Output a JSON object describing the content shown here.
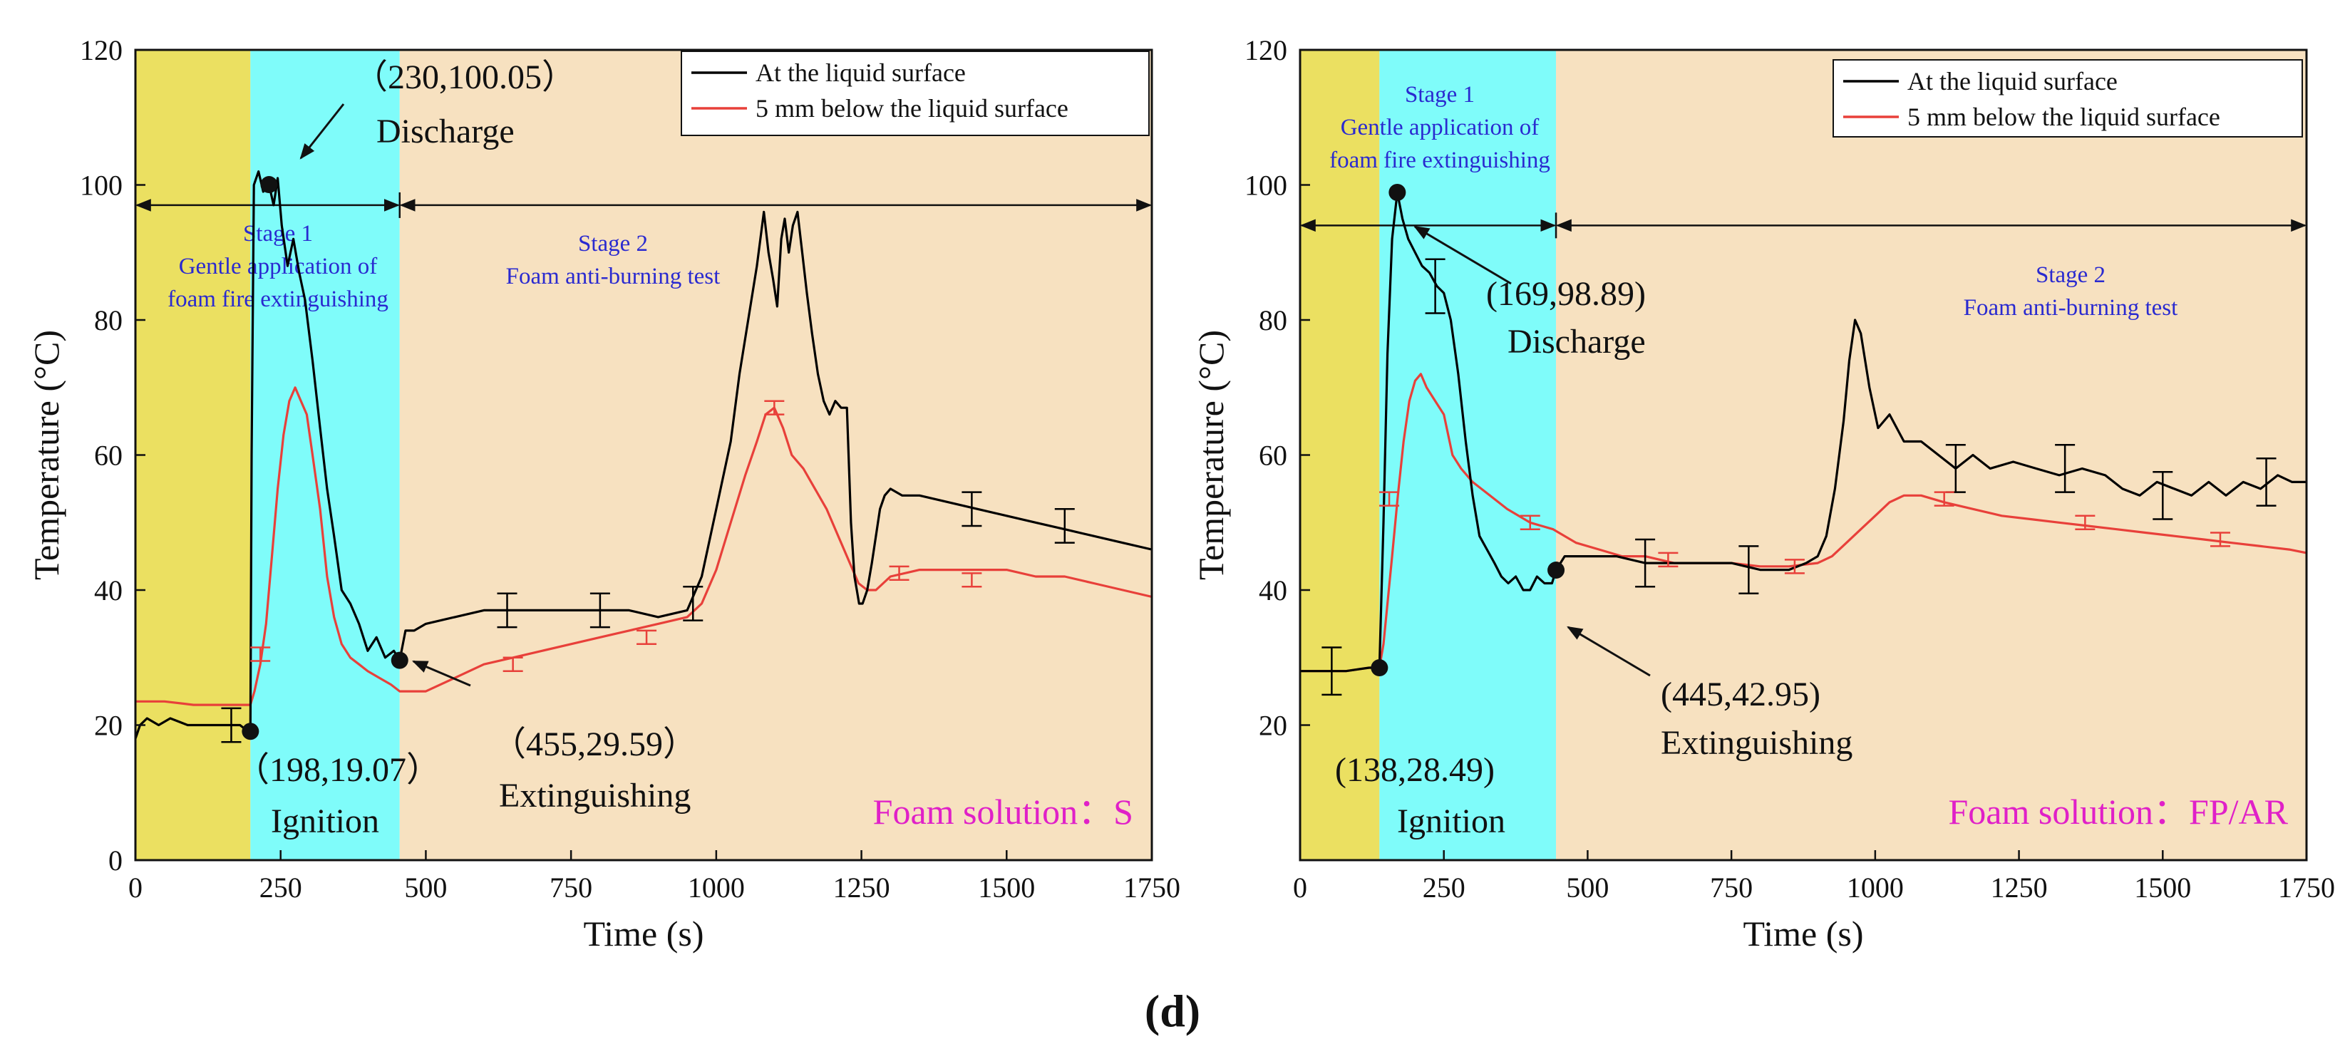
{
  "caption": "(d)",
  "colors": {
    "surface": "#000000",
    "below": "#e8403a",
    "preburn": "#ebe061",
    "stage1": "#7ffcfa",
    "stage2": "#f7e1c0",
    "stage_text": "#2a2ad0",
    "foam_text": "#e020c8"
  },
  "chart_data": [
    {
      "type": "line",
      "title": "",
      "xlabel": "Time (s)",
      "ylabel": "Temperature (°C)",
      "xlim": [
        0,
        1750
      ],
      "ylim": [
        0,
        120
      ],
      "xticks": [
        0,
        250,
        500,
        750,
        1000,
        1250,
        1500,
        1750
      ],
      "yticks": [
        0,
        20,
        40,
        60,
        80,
        100,
        120
      ],
      "xtick_labels": [
        "0",
        "250",
        "500",
        "750",
        "1000",
        "1250",
        "1500",
        "1750"
      ],
      "ytick_labels": [
        "0",
        "20",
        "40",
        "60",
        "80",
        "100",
        "120"
      ],
      "legend": [
        "At the liquid surface",
        "5 mm below the liquid surface"
      ],
      "legend_position": "top-right",
      "regions": [
        {
          "name": "preburn",
          "x": [
            0,
            198
          ]
        },
        {
          "name": "stage1",
          "x": [
            198,
            455
          ]
        },
        {
          "name": "stage2",
          "x": [
            455,
            1750
          ]
        }
      ],
      "stage_arrow_y": 97,
      "stage1_lines": [
        "Stage 1",
        "Gentle application of",
        "foam fire extinguishing"
      ],
      "stage2_lines": [
        "Stage 2",
        "Foam anti-burning test"
      ],
      "foam_label": "Foam solution：S",
      "points": [
        {
          "x": 230,
          "y": 100.05,
          "coord": "（230,100.05）",
          "label": "Discharge"
        },
        {
          "x": 198,
          "y": 19.07,
          "coord": "（198,19.07）",
          "label": "Ignition"
        },
        {
          "x": 455,
          "y": 29.59,
          "coord": "（455,29.59）",
          "label": "Extinguishing"
        }
      ],
      "series": [
        {
          "name": "At the liquid surface",
          "x": [
            0,
            8,
            20,
            40,
            60,
            90,
            120,
            150,
            180,
            195,
            198,
            200,
            204,
            212,
            220,
            230,
            238,
            245,
            252,
            262,
            272,
            282,
            292,
            305,
            318,
            330,
            342,
            355,
            370,
            385,
            400,
            415,
            430,
            445,
            455,
            465,
            480,
            500,
            550,
            600,
            650,
            700,
            750,
            800,
            850,
            900,
            950,
            975,
            1000,
            1025,
            1040,
            1055,
            1070,
            1082,
            1090,
            1098,
            1105,
            1112,
            1118,
            1125,
            1132,
            1140,
            1148,
            1156,
            1165,
            1175,
            1185,
            1195,
            1205,
            1215,
            1225,
            1232,
            1238,
            1242,
            1246,
            1252,
            1260,
            1268,
            1275,
            1282,
            1290,
            1300,
            1320,
            1350,
            1400,
            1450,
            1500,
            1550,
            1600,
            1650,
            1700,
            1750
          ],
          "y": [
            18,
            20,
            21,
            20,
            21,
            20,
            20,
            20,
            20,
            19,
            19.07,
            60,
            100,
            102,
            99,
            100.05,
            97,
            101,
            94,
            88,
            92,
            87,
            83,
            74,
            64,
            55,
            48,
            40,
            38,
            35,
            31,
            33,
            30,
            31,
            29.59,
            34,
            34,
            35,
            36,
            37,
            37,
            37,
            37,
            37,
            37,
            36,
            37,
            42,
            52,
            62,
            72,
            80,
            88,
            96,
            90,
            86,
            82,
            92,
            95,
            90,
            94,
            96,
            90,
            84,
            78,
            72,
            68,
            66,
            68,
            67,
            67,
            50,
            42,
            40,
            38,
            38,
            40,
            44,
            48,
            52,
            54,
            55,
            54,
            54,
            53,
            52,
            51,
            50,
            49,
            48,
            47,
            46
          ]
        },
        {
          "name": "5 mm below the liquid surface",
          "x": [
            0,
            50,
            100,
            150,
            195,
            198,
            205,
            215,
            225,
            235,
            245,
            255,
            265,
            275,
            285,
            295,
            305,
            318,
            330,
            342,
            355,
            370,
            385,
            400,
            420,
            440,
            455,
            475,
            500,
            550,
            600,
            650,
            700,
            750,
            800,
            850,
            900,
            950,
            975,
            1000,
            1025,
            1050,
            1070,
            1085,
            1100,
            1115,
            1130,
            1150,
            1170,
            1190,
            1210,
            1230,
            1245,
            1260,
            1275,
            1300,
            1350,
            1400,
            1450,
            1500,
            1550,
            1600,
            1650,
            1700,
            1750
          ],
          "y": [
            23.5,
            23.5,
            23,
            23,
            23,
            23,
            25,
            29,
            35,
            45,
            55,
            63,
            68,
            70,
            68,
            66,
            60,
            52,
            42,
            36,
            32,
            30,
            29,
            28,
            27,
            26,
            25,
            25,
            25,
            27,
            29,
            30,
            31,
            32,
            33,
            34,
            35,
            36,
            38,
            43,
            50,
            57,
            62,
            66,
            67,
            64,
            60,
            58,
            55,
            52,
            48,
            44,
            41,
            40,
            40,
            42,
            43,
            43,
            43,
            43,
            42,
            42,
            41,
            40,
            39
          ]
        }
      ],
      "error_bars": [
        {
          "series": 0,
          "x": [
            165,
            640,
            800,
            960,
            1440,
            1600
          ],
          "y": [
            20,
            37,
            37,
            38,
            52,
            49.5
          ],
          "err": [
            2.5,
            2.5,
            2.5,
            2.5,
            2.5,
            2.5
          ]
        },
        {
          "series": 1,
          "x": [
            215,
            650,
            880,
            1100,
            1315,
            1440
          ],
          "y": [
            30.5,
            29,
            33,
            67,
            42.5,
            41.5
          ],
          "err": [
            1,
            1,
            1,
            1,
            1,
            1
          ]
        }
      ]
    },
    {
      "type": "line",
      "title": "",
      "xlabel": "Time (s)",
      "ylabel": "Temperature (°C)",
      "xlim": [
        0,
        1750
      ],
      "ylim": [
        0,
        120
      ],
      "xticks": [
        0,
        250,
        500,
        750,
        1000,
        1250,
        1500,
        1750
      ],
      "yticks": [
        20,
        40,
        60,
        80,
        100,
        120
      ],
      "xtick_labels": [
        "0",
        "250",
        "500",
        "750",
        "1000",
        "1250",
        "1500",
        "1750"
      ],
      "ytick_labels": [
        "20",
        "40",
        "60",
        "80",
        "100",
        "120"
      ],
      "legend": [
        "At the liquid surface",
        "5 mm below the liquid surface"
      ],
      "legend_position": "top-right",
      "regions": [
        {
          "name": "preburn",
          "x": [
            0,
            138
          ]
        },
        {
          "name": "stage1",
          "x": [
            138,
            445
          ]
        },
        {
          "name": "stage2",
          "x": [
            445,
            1750
          ]
        }
      ],
      "stage_arrow_y": 94,
      "stage1_lines": [
        "Stage 1",
        "Gentle application of",
        "foam fire extinguishing"
      ],
      "stage2_lines": [
        "Stage 2",
        "Foam anti-burning test"
      ],
      "foam_label": "Foam solution：FP/AR",
      "points": [
        {
          "x": 169,
          "y": 98.89,
          "coord": "(169,98.89)",
          "label": "Discharge"
        },
        {
          "x": 138,
          "y": 28.49,
          "coord": "(138,28.49)",
          "label": "Ignition"
        },
        {
          "x": 445,
          "y": 42.95,
          "coord": "(445,42.95)",
          "label": "Extinguishing"
        }
      ],
      "series": [
        {
          "name": "At the liquid surface",
          "x": [
            0,
            40,
            80,
            120,
            135,
            138,
            145,
            152,
            160,
            169,
            178,
            188,
            200,
            212,
            225,
            238,
            250,
            262,
            275,
            288,
            300,
            312,
            325,
            338,
            350,
            362,
            375,
            388,
            400,
            412,
            425,
            438,
            445,
            460,
            480,
            500,
            550,
            600,
            650,
            700,
            750,
            800,
            850,
            880,
            900,
            915,
            930,
            945,
            955,
            965,
            975,
            990,
            1005,
            1025,
            1050,
            1080,
            1110,
            1140,
            1170,
            1200,
            1240,
            1280,
            1320,
            1360,
            1400,
            1430,
            1460,
            1490,
            1520,
            1550,
            1580,
            1610,
            1640,
            1670,
            1700,
            1725,
            1750
          ],
          "y": [
            28,
            28,
            28,
            28.5,
            28.5,
            28.49,
            50,
            75,
            92,
            98.89,
            95,
            92,
            90,
            88,
            87,
            85,
            84,
            80,
            72,
            62,
            54,
            48,
            46,
            44,
            42,
            41,
            42,
            40,
            40,
            42,
            41,
            41,
            42.95,
            45,
            45,
            45,
            45,
            44,
            44,
            44,
            44,
            43,
            43,
            44,
            45,
            48,
            55,
            65,
            74,
            80,
            78,
            70,
            64,
            66,
            62,
            62,
            60,
            58,
            60,
            58,
            59,
            58,
            57,
            58,
            57,
            55,
            54,
            56,
            55,
            54,
            56,
            54,
            56,
            55,
            57,
            56,
            56
          ]
        },
        {
          "name": "5 mm below the liquid surface",
          "x": [
            0,
            40,
            80,
            120,
            138,
            145,
            152,
            160,
            170,
            180,
            190,
            200,
            210,
            220,
            235,
            250,
            265,
            280,
            300,
            330,
            360,
            400,
            440,
            480,
            520,
            560,
            600,
            650,
            700,
            750,
            800,
            850,
            900,
            925,
            950,
            975,
            1000,
            1025,
            1050,
            1080,
            1120,
            1170,
            1220,
            1270,
            1320,
            1370,
            1420,
            1470,
            1520,
            1570,
            1620,
            1670,
            1720,
            1750
          ],
          "y": [
            28,
            28,
            28,
            28.5,
            28.5,
            32,
            38,
            45,
            54,
            62,
            68,
            71,
            72,
            70,
            68,
            66,
            60,
            58,
            56,
            54,
            52,
            50,
            49,
            47,
            46,
            45,
            45,
            44,
            44,
            44,
            43.5,
            43.5,
            44,
            45,
            47,
            49,
            51,
            53,
            54,
            54,
            53,
            52,
            51,
            50.5,
            50,
            49.5,
            49,
            48.5,
            48,
            47.5,
            47,
            46.5,
            46,
            45.5
          ]
        }
      ],
      "error_bars": [
        {
          "series": 0,
          "x": [
            55,
            235,
            600,
            780,
            1140,
            1330,
            1500,
            1680
          ],
          "y": [
            28,
            85,
            44,
            43,
            58,
            58,
            54,
            56
          ],
          "err": [
            3.5,
            4,
            3.5,
            3.5,
            3.5,
            3.5,
            3.5,
            3.5
          ]
        },
        {
          "series": 1,
          "x": [
            155,
            400,
            640,
            860,
            1120,
            1365,
            1600
          ],
          "y": [
            53.5,
            50,
            44.5,
            43.5,
            53.5,
            50,
            47.5
          ],
          "err": [
            1,
            1,
            1,
            1,
            1,
            1,
            1
          ]
        }
      ]
    }
  ]
}
